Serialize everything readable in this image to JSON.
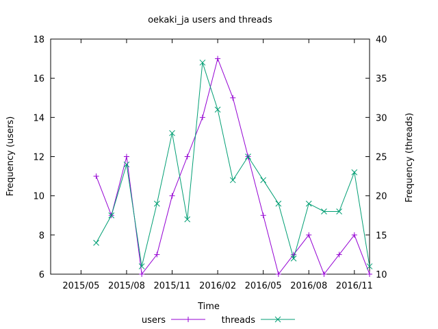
{
  "chart_data": {
    "type": "line",
    "title": "oekaki_ja users and threads",
    "xlabel": "Time",
    "ylabel_left": "Frequency (users)",
    "ylabel_right": "Frequency (threads)",
    "x_ticks": [
      "2015/05",
      "2015/08",
      "2015/11",
      "2016/02",
      "2016/05",
      "2016/08",
      "2016/11"
    ],
    "y_left_ticks": [
      "6",
      "8",
      "10",
      "12",
      "14",
      "16",
      "18"
    ],
    "y_right_ticks": [
      "10",
      "15",
      "20",
      "25",
      "30",
      "35",
      "40"
    ],
    "ylim_left": [
      6,
      18
    ],
    "ylim_right": [
      10,
      40
    ],
    "xlim": [
      "2015/03",
      "2016/12"
    ],
    "grid": false,
    "legend_placement": "bottom-center",
    "x": [
      "2015/06",
      "2015/07",
      "2015/08",
      "2015/09",
      "2015/10",
      "2015/11",
      "2015/12",
      "2016/01",
      "2016/02",
      "2016/03",
      "2016/04",
      "2016/05",
      "2016/06",
      "2016/07",
      "2016/08",
      "2016/09",
      "2016/10",
      "2016/11",
      "2016/12"
    ],
    "series": [
      {
        "name": "users",
        "axis": "left",
        "color": "#9400d3",
        "marker": "plus",
        "values": [
          11,
          9,
          12,
          6,
          7,
          10,
          12,
          14,
          17,
          15,
          12,
          9,
          6,
          7,
          8,
          6,
          7,
          8,
          6
        ]
      },
      {
        "name": "threads",
        "axis": "right",
        "color": "#009e73",
        "marker": "cross",
        "values": [
          14,
          17.5,
          24,
          11,
          19,
          28,
          17,
          37,
          31,
          22,
          25,
          22,
          19,
          12,
          19,
          18,
          18,
          23,
          11
        ]
      }
    ]
  }
}
